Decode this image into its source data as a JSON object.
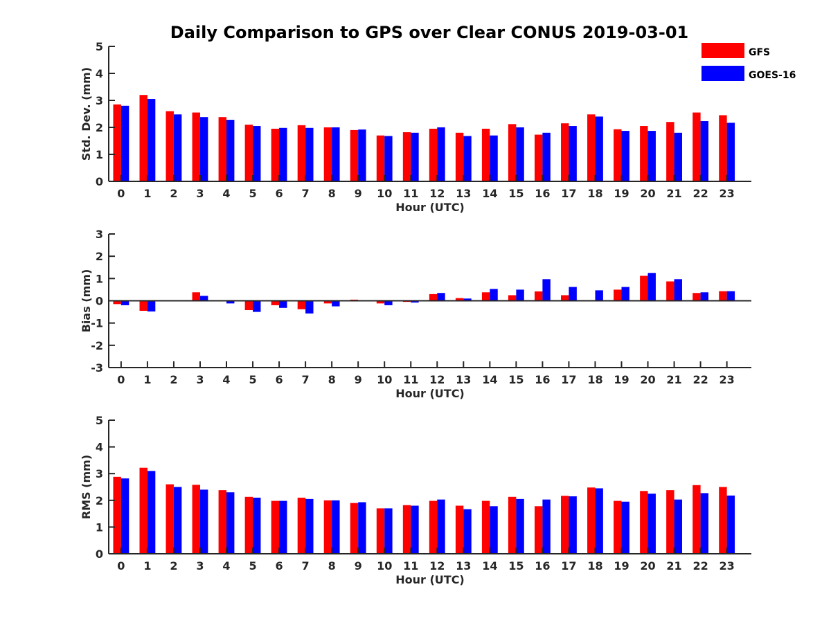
{
  "chart_data": {
    "title": "Daily Comparison to GPS over Clear CONUS 2019-03-01",
    "legend": {
      "placement": "top-right",
      "entries": [
        {
          "name": "GFS",
          "color": "#ff0000"
        },
        {
          "name": "GOES-16",
          "color": "#0000ff"
        }
      ]
    },
    "panels": [
      {
        "type": "bar",
        "ylabel": "Std. Dev. (mm)",
        "xlabel": "Hour (UTC)",
        "ylim": [
          0,
          5
        ],
        "yticks": [
          "0",
          "1",
          "2",
          "3",
          "4",
          "5"
        ],
        "categories": [
          "0",
          "1",
          "2",
          "3",
          "4",
          "5",
          "6",
          "7",
          "8",
          "9",
          "10",
          "11",
          "12",
          "13",
          "14",
          "15",
          "16",
          "17",
          "18",
          "19",
          "20",
          "21",
          "22",
          "23"
        ],
        "series": [
          {
            "name": "GFS",
            "color": "#ff0000",
            "values": [
              2.85,
              3.2,
              2.6,
              2.55,
              2.38,
              2.1,
              1.95,
              2.08,
              2.0,
              1.9,
              1.7,
              1.82,
              1.95,
              1.8,
              1.95,
              2.12,
              1.73,
              2.15,
              2.48,
              1.93,
              2.05,
              2.2,
              2.55,
              2.45
            ]
          },
          {
            "name": "GOES-16",
            "color": "#0000ff",
            "values": [
              2.8,
              3.05,
              2.48,
              2.38,
              2.28,
              2.05,
              1.98,
              1.98,
              2.0,
              1.92,
              1.68,
              1.8,
              2.0,
              1.68,
              1.7,
              2.0,
              1.8,
              2.05,
              2.4,
              1.87,
              1.87,
              1.8,
              2.23,
              2.17
            ]
          }
        ]
      },
      {
        "type": "bar",
        "ylabel": "Bias (mm)",
        "xlabel": "Hour (UTC)",
        "ylim": [
          -3,
          3
        ],
        "yticks": [
          "-3",
          "-2",
          "-1",
          "0",
          "1",
          "2",
          "3"
        ],
        "categories": [
          "0",
          "1",
          "2",
          "3",
          "4",
          "5",
          "6",
          "7",
          "8",
          "9",
          "10",
          "11",
          "12",
          "13",
          "14",
          "15",
          "16",
          "17",
          "18",
          "19",
          "20",
          "21",
          "22",
          "23"
        ],
        "series": [
          {
            "name": "GFS",
            "color": "#ff0000",
            "values": [
              -0.15,
              -0.45,
              0.0,
              0.38,
              0.0,
              -0.42,
              -0.2,
              -0.38,
              -0.12,
              0.05,
              -0.12,
              -0.05,
              0.3,
              0.12,
              0.38,
              0.25,
              0.42,
              0.25,
              0.0,
              0.5,
              1.12,
              0.87,
              0.35,
              0.43
            ]
          },
          {
            "name": "GOES-16",
            "color": "#0000ff",
            "values": [
              -0.2,
              -0.48,
              0.0,
              0.22,
              -0.12,
              -0.5,
              -0.32,
              -0.57,
              -0.25,
              0.0,
              -0.2,
              -0.08,
              0.35,
              0.1,
              0.53,
              0.5,
              0.97,
              0.62,
              0.47,
              0.62,
              1.25,
              0.97,
              0.38,
              0.43
            ]
          }
        ]
      },
      {
        "type": "bar",
        "ylabel": "RMS (mm)",
        "xlabel": "Hour (UTC)",
        "ylim": [
          0,
          5
        ],
        "yticks": [
          "0",
          "1",
          "2",
          "3",
          "4",
          "5"
        ],
        "categories": [
          "0",
          "1",
          "2",
          "3",
          "4",
          "5",
          "6",
          "7",
          "8",
          "9",
          "10",
          "11",
          "12",
          "13",
          "14",
          "15",
          "16",
          "17",
          "18",
          "19",
          "20",
          "21",
          "22",
          "23"
        ],
        "series": [
          {
            "name": "GFS",
            "color": "#ff0000",
            "values": [
              2.88,
              3.22,
              2.6,
              2.58,
              2.38,
              2.13,
              1.98,
              2.1,
              2.0,
              1.9,
              1.7,
              1.82,
              1.98,
              1.8,
              1.98,
              2.13,
              1.78,
              2.17,
              2.48,
              1.98,
              2.35,
              2.38,
              2.57,
              2.5
            ]
          },
          {
            "name": "GOES-16",
            "color": "#0000ff",
            "values": [
              2.82,
              3.1,
              2.5,
              2.4,
              2.3,
              2.1,
              1.98,
              2.05,
              2.0,
              1.93,
              1.7,
              1.8,
              2.03,
              1.67,
              1.78,
              2.05,
              2.03,
              2.15,
              2.45,
              1.95,
              2.25,
              2.03,
              2.27,
              2.18
            ]
          }
        ]
      }
    ]
  }
}
